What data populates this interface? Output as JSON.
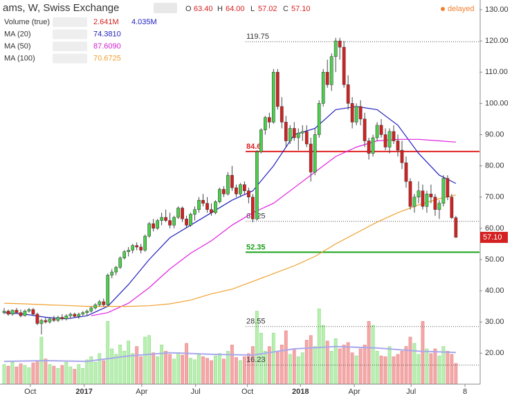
{
  "chart_data": {
    "type": "candlestick",
    "title": "ams, W, Swiss Exchange",
    "header": {
      "o": "O",
      "open": "63.40",
      "h": "H",
      "high": "64.00",
      "l": "L",
      "low": "57.02",
      "c": "C",
      "close": "57.10",
      "status": "delayed"
    },
    "legend": [
      {
        "name": "Volume (true)",
        "values": [
          "2.641M",
          "4.035M"
        ],
        "colors": [
          "#d42020",
          "#2020c0"
        ]
      },
      {
        "name": "MA (20)",
        "values": [
          "74.3810"
        ],
        "colors": [
          "#2020c0"
        ]
      },
      {
        "name": "MA (50)",
        "values": [
          "87.6090"
        ],
        "colors": [
          "#d020d0"
        ]
      },
      {
        "name": "MA (100)",
        "values": [
          "70.6725"
        ],
        "colors": [
          "#f0a030"
        ]
      }
    ],
    "up_color": "#4ccf4c",
    "down_color": "#d42020",
    "candles": [
      [
        33,
        34.5,
        32.5,
        33.5
      ],
      [
        33.5,
        34,
        32,
        32.5
      ],
      [
        32.5,
        34,
        32,
        33.8
      ],
      [
        33.8,
        34.5,
        33,
        33
      ],
      [
        33,
        34,
        31.5,
        32
      ],
      [
        32,
        34,
        31.8,
        33.5
      ],
      [
        33.5,
        34.5,
        33,
        34
      ],
      [
        34,
        34.5,
        32,
        32.5
      ],
      [
        32.5,
        33,
        29,
        29.5
      ],
      [
        29.5,
        31,
        26,
        30.5
      ],
      [
        30.5,
        31.5,
        29.5,
        30
      ],
      [
        30,
        31.5,
        29.5,
        31
      ],
      [
        31,
        32,
        30,
        30.5
      ],
      [
        30.5,
        32,
        30,
        31.5
      ],
      [
        31.5,
        32.5,
        30.5,
        31
      ],
      [
        31,
        32.5,
        30.5,
        32
      ],
      [
        32,
        33,
        31,
        32.5
      ],
      [
        32.5,
        33,
        31.5,
        31.8
      ],
      [
        31.8,
        33,
        31,
        32.5
      ],
      [
        32.5,
        33.5,
        32,
        33
      ],
      [
        33,
        34,
        32,
        33.5
      ],
      [
        33.5,
        35,
        33,
        34.5
      ],
      [
        34.5,
        36,
        34,
        35.5
      ],
      [
        35.5,
        37,
        35,
        36.5
      ],
      [
        36.5,
        37.5,
        35,
        35.5
      ],
      [
        35.5,
        45.5,
        35,
        45
      ],
      [
        45,
        47,
        44,
        46
      ],
      [
        46,
        48,
        45,
        47.5
      ],
      [
        47.5,
        51,
        47,
        50.5
      ],
      [
        50.5,
        53,
        50,
        52.5
      ],
      [
        52.5,
        54,
        51,
        53
      ],
      [
        53,
        55,
        52,
        54.5
      ],
      [
        54.5,
        55.5,
        53,
        54
      ],
      [
        54,
        55,
        52,
        53
      ],
      [
        53,
        58,
        52.5,
        57.5
      ],
      [
        57.5,
        62,
        57,
        61.5
      ],
      [
        61.5,
        63,
        59,
        60
      ],
      [
        60,
        63,
        59.5,
        62.5
      ],
      [
        62.5,
        65,
        61,
        63.5
      ],
      [
        63.5,
        66,
        62,
        62.5
      ],
      [
        62.5,
        65,
        60,
        61
      ],
      [
        61,
        64,
        60,
        63.5
      ],
      [
        63.5,
        67,
        63,
        66.5
      ],
      [
        66.5,
        67,
        62,
        63
      ],
      [
        63,
        64,
        60,
        61
      ],
      [
        61,
        65,
        60.5,
        64.5
      ],
      [
        64.5,
        67,
        62.5,
        66
      ],
      [
        66,
        70,
        65,
        69
      ],
      [
        69,
        71,
        67,
        68
      ],
      [
        68,
        70,
        65,
        66
      ],
      [
        66,
        68,
        64,
        65
      ],
      [
        65,
        69,
        64.5,
        68.5
      ],
      [
        68.5,
        73,
        68,
        72.5
      ],
      [
        72.5,
        73.5,
        70,
        71
      ],
      [
        71,
        78,
        70.5,
        77
      ],
      [
        77,
        80,
        72,
        73
      ],
      [
        73,
        74,
        70,
        71
      ],
      [
        71,
        74.5,
        70,
        74
      ],
      [
        74,
        75,
        71,
        72
      ],
      [
        72,
        73,
        68,
        70
      ],
      [
        70,
        71,
        62,
        63
      ],
      [
        63,
        85,
        62.5,
        84.5
      ],
      [
        84.5,
        92,
        84,
        91.5
      ],
      [
        91.5,
        96,
        90,
        95.5
      ],
      [
        95.5,
        97,
        92,
        94
      ],
      [
        94,
        111,
        93.5,
        110
      ],
      [
        110,
        111,
        98,
        99
      ],
      [
        99,
        102,
        92,
        94
      ],
      [
        94,
        96,
        86,
        88
      ],
      [
        88,
        93,
        87,
        92
      ],
      [
        92,
        94,
        88,
        89
      ],
      [
        89,
        92,
        85,
        90.5
      ],
      [
        90.5,
        93,
        88,
        91
      ],
      [
        91,
        93,
        86,
        87
      ],
      [
        87,
        89,
        75,
        78
      ],
      [
        78,
        92,
        77,
        90
      ],
      [
        90,
        101,
        89,
        100
      ],
      [
        100,
        111,
        99,
        110
      ],
      [
        110,
        114,
        105,
        106
      ],
      [
        106,
        116,
        104,
        115
      ],
      [
        115,
        121,
        110,
        120
      ],
      [
        120,
        121,
        114,
        118
      ],
      [
        118,
        120,
        105,
        106
      ],
      [
        106,
        109,
        98,
        100
      ],
      [
        100,
        102,
        92,
        94
      ],
      [
        94,
        100,
        93,
        99
      ],
      [
        99,
        101,
        93,
        95
      ],
      [
        95,
        97,
        86,
        88
      ],
      [
        88,
        89,
        82,
        84
      ],
      [
        84,
        90,
        83,
        89
      ],
      [
        89,
        94,
        88,
        93
      ],
      [
        93,
        95,
        89,
        90
      ],
      [
        90,
        92,
        85,
        86
      ],
      [
        86,
        92,
        84,
        91
      ],
      [
        91,
        93,
        87,
        88
      ],
      [
        88,
        90,
        83,
        85
      ],
      [
        85,
        88,
        79,
        81
      ],
      [
        81,
        83,
        73,
        75
      ],
      [
        75,
        76,
        66,
        67
      ],
      [
        67,
        71,
        65,
        70
      ],
      [
        70,
        75,
        68,
        72
      ],
      [
        72,
        74,
        66,
        67
      ],
      [
        67,
        72,
        65,
        71
      ],
      [
        71,
        74,
        68,
        70
      ],
      [
        70,
        71,
        64,
        66
      ],
      [
        66,
        69,
        63,
        68
      ],
      [
        68,
        77,
        67,
        76
      ],
      [
        76,
        77,
        69,
        70
      ],
      [
        70,
        71,
        63,
        63.4
      ],
      [
        63.4,
        64,
        57.02,
        57.1
      ]
    ],
    "volume": [
      2.5,
      2.3,
      2.8,
      2.2,
      2.6,
      2.4,
      2.1,
      2.7,
      3.0,
      6.0,
      3.2,
      2.5,
      2.3,
      2.0,
      2.4,
      2.8,
      2.2,
      1.9,
      2.5,
      2.0,
      3.1,
      3.5,
      2.8,
      3.9,
      3.0,
      8.0,
      4.5,
      3.8,
      5.0,
      4.2,
      5.5,
      3.9,
      4.8,
      3.5,
      6.0,
      6.2,
      4.0,
      3.5,
      5.0,
      4.2,
      3.8,
      3.2,
      4.0,
      3.7,
      5.2,
      3.3,
      3.1,
      3.8,
      3.5,
      3.3,
      3.0,
      3.6,
      3.9,
      3.2,
      4.2,
      5.0,
      3.4,
      3.0,
      3.5,
      3.9,
      4.8,
      9.3,
      6.5,
      4.2,
      4.8,
      6.5,
      4.2,
      5.0,
      6.8,
      3.8,
      4.5,
      3.5,
      4.0,
      5.6,
      6.2,
      4.8,
      9.6,
      7.5,
      5.5,
      4.2,
      5.8,
      4.5,
      5.0,
      5.3,
      4.0,
      3.6,
      4.5,
      5.0,
      8.0,
      7.5,
      4.2,
      3.6,
      3.5,
      4.8,
      3.5,
      3.8,
      4.2,
      4.8,
      6.0,
      5.2,
      3.8,
      8.0,
      4.5,
      3.9,
      4.5,
      3.6,
      4.8,
      4.2,
      3.8,
      2.641
    ],
    "volume_lim": [
      0,
      9.7
    ],
    "volume_ma": {
      "color": "#a8a8ec",
      "x": [
        0,
        10,
        20,
        30,
        40,
        50,
        60,
        70,
        80,
        90,
        100,
        109
      ],
      "values": [
        2.9,
        3.0,
        2.9,
        3.6,
        4.0,
        3.8,
        3.7,
        4.5,
        4.8,
        4.6,
        4.2,
        4.035
      ]
    },
    "series": [
      {
        "name": "MA (20)",
        "color": "#2020c0",
        "x": [
          0,
          5,
          10,
          15,
          20,
          25,
          30,
          35,
          40,
          45,
          50,
          55,
          60,
          65,
          70,
          75,
          80,
          85,
          90,
          95,
          100,
          105,
          109
        ],
        "values": [
          33,
          32.5,
          31.5,
          31,
          32,
          35,
          42,
          50,
          57,
          61,
          65,
          69,
          72,
          80,
          90,
          92,
          98,
          99,
          98,
          93,
          84,
          77,
          74.381
        ]
      },
      {
        "name": "MA (50)",
        "color": "#e020e0",
        "x": [
          21,
          25,
          30,
          35,
          40,
          45,
          50,
          55,
          60,
          65,
          70,
          75,
          80,
          85,
          90,
          95,
          100,
          105,
          109
        ],
        "values": [
          32,
          33,
          36,
          41,
          47,
          52,
          56,
          61,
          65,
          68,
          73,
          78,
          83,
          86,
          88,
          88.5,
          88.5,
          88,
          87.609
        ]
      },
      {
        "name": "MA (100)",
        "color": "#f0a030",
        "x": [
          0,
          5,
          10,
          15,
          20,
          25,
          30,
          35,
          40,
          45,
          50,
          55,
          60,
          65,
          70,
          75,
          80,
          85,
          90,
          95,
          100,
          105,
          109
        ],
        "values": [
          36,
          35.8,
          35.5,
          35.3,
          35,
          35,
          35,
          35.2,
          35.8,
          37,
          39,
          40.5,
          43,
          45.5,
          48,
          51,
          55,
          58.5,
          62,
          65,
          67.5,
          69.5,
          70.6725
        ]
      }
    ],
    "levels": [
      {
        "value": 119.75,
        "color": "#555",
        "style": "dotted"
      },
      {
        "value": 84.6,
        "color": "#e02020",
        "style": "solid"
      },
      {
        "value": 62.25,
        "color": "#555",
        "style": "dotted"
      },
      {
        "value": 52.35,
        "color": "#18a018",
        "style": "solid"
      },
      {
        "value": 28.55,
        "color": "#555",
        "style": "dotted"
      },
      {
        "value": 16.23,
        "color": "#555",
        "style": "dotted"
      }
    ],
    "xlim": [
      -0.5,
      114.7
    ],
    "xticks": [
      {
        "value": 6.3,
        "label": "Oct"
      },
      {
        "value": 19.3,
        "label": "2017"
      },
      {
        "value": 33.2,
        "label": "Apr"
      },
      {
        "value": 46.2,
        "label": "Jul"
      },
      {
        "value": 58.7,
        "label": "Oct"
      },
      {
        "value": 71.5,
        "label": "2018"
      },
      {
        "value": 84.5,
        "label": "Apr"
      },
      {
        "value": 98.2,
        "label": "Jul"
      },
      {
        "value": 111.2,
        "label": "8"
      }
    ],
    "ylim": [
      10.1,
      130
    ],
    "yticks": [
      {
        "value": 20,
        "label": "20.00"
      },
      {
        "value": 30,
        "label": "30.00"
      },
      {
        "value": 40,
        "label": "40.00"
      },
      {
        "value": 50,
        "label": "50.00"
      },
      {
        "value": 60,
        "label": "60.00"
      },
      {
        "value": 70,
        "label": "70.00"
      },
      {
        "value": 80,
        "label": "80.00"
      },
      {
        "value": 90,
        "label": "90.00"
      },
      {
        "value": 100,
        "label": "100.00"
      },
      {
        "value": 110,
        "label": "110.00"
      },
      {
        "value": 120,
        "label": "120.00"
      },
      {
        "value": 130,
        "label": "130.00"
      }
    ],
    "grid": false
  }
}
